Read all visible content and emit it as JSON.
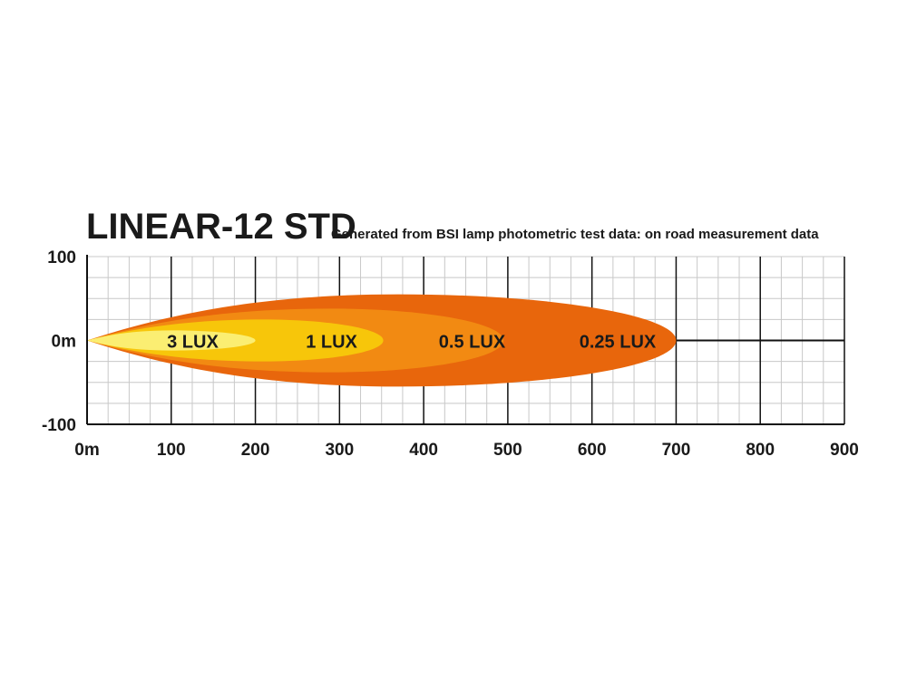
{
  "chart_data": {
    "type": "area",
    "title": "LINEAR-12 STD",
    "subtitle": "Generated from BSI lamp photometric test data: on road measurement data",
    "x_ticks": [
      "0m",
      "100",
      "200",
      "300",
      "400",
      "500",
      "600",
      "700",
      "800",
      "900"
    ],
    "x_tick_values": [
      0,
      100,
      200,
      300,
      400,
      500,
      600,
      700,
      800,
      900
    ],
    "y_ticks": [
      "100",
      "0m",
      "-100"
    ],
    "y_tick_values": [
      100,
      0,
      -100
    ],
    "xlim": [
      0,
      900
    ],
    "ylim": [
      -100,
      100
    ],
    "grid": true,
    "series": [
      {
        "name": "0.25 LUX",
        "reach": 700,
        "half_width": 55,
        "peak_at": 370,
        "color": "#E8660C"
      },
      {
        "name": "0.5 LUX",
        "reach": 495,
        "half_width": 38,
        "peak_at": 290,
        "color": "#F28A12"
      },
      {
        "name": "1 LUX",
        "reach": 352,
        "half_width": 25,
        "peak_at": 210,
        "color": "#F7C60A"
      },
      {
        "name": "3 LUX",
        "reach": 200,
        "half_width": 12,
        "peak_at": 100,
        "color": "#FBEE72"
      }
    ],
    "label_positions": [
      {
        "name": "3 LUX",
        "x": 95
      },
      {
        "name": "1 LUX",
        "x": 260
      },
      {
        "name": "0.5 LUX",
        "x": 418
      },
      {
        "name": "0.25 LUX",
        "x": 585
      }
    ]
  },
  "colors": {
    "grid": "#c8c8c8",
    "axis": "#111111",
    "text": "#1a1a1a"
  }
}
